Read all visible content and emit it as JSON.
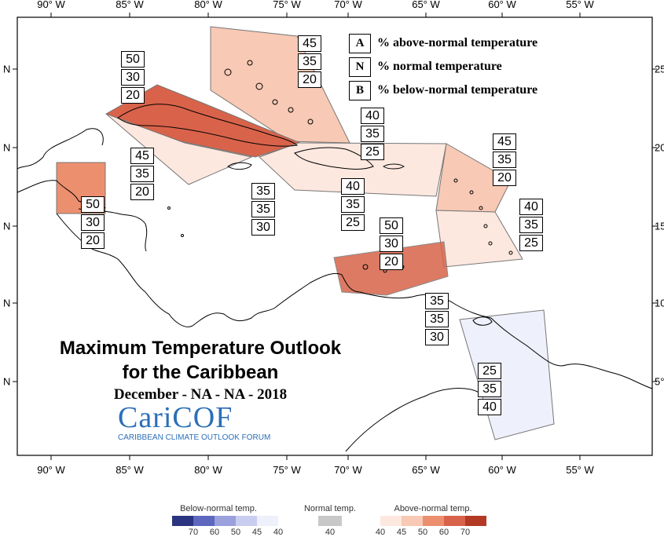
{
  "axes": {
    "lon_ticks": [
      "90° W",
      "85° W",
      "80° W",
      "75° W",
      "70° W",
      "65° W",
      "60° W",
      "55° W"
    ],
    "lat_ticks_left": [
      "N",
      "N",
      "N",
      "N",
      "N"
    ],
    "lat_ticks_right": [
      "25",
      "20",
      "15",
      "10",
      "5°"
    ]
  },
  "legend_key": [
    {
      "letter": "A",
      "text": "% above-normal temperature"
    },
    {
      "letter": "N",
      "text": "% normal temperature"
    },
    {
      "letter": "B",
      "text": "% below-normal temperature"
    }
  ],
  "regions": [
    {
      "name": "bahamas",
      "probs": [
        "45",
        "35",
        "20"
      ]
    },
    {
      "name": "cuba",
      "probs": [
        "50",
        "30",
        "20"
      ]
    },
    {
      "name": "cayman-jamaica-south",
      "probs": [
        "45",
        "35",
        "20"
      ]
    },
    {
      "name": "belize",
      "probs": [
        "50",
        "30",
        "20"
      ]
    },
    {
      "name": "jamaica",
      "probs": [
        "35",
        "35",
        "30"
      ]
    },
    {
      "name": "turks-caicos",
      "probs": [
        "40",
        "35",
        "25"
      ]
    },
    {
      "name": "hispaniola",
      "probs": [
        "40",
        "35",
        "25"
      ]
    },
    {
      "name": "leeward-islands",
      "probs": [
        "45",
        "35",
        "20"
      ]
    },
    {
      "name": "windward-islands",
      "probs": [
        "40",
        "35",
        "25"
      ]
    },
    {
      "name": "abc-islands",
      "probs": [
        "50",
        "30",
        "20"
      ]
    },
    {
      "name": "trinidad-tobago",
      "probs": [
        "35",
        "35",
        "30"
      ]
    },
    {
      "name": "guianas",
      "probs": [
        "25",
        "35",
        "40"
      ]
    }
  ],
  "colors": {
    "above_40": "#fde8df",
    "above_45": "#f8c9b4",
    "above_50": "#ec8f6e",
    "above_60": "#d8634a",
    "above_70": "#b23a25",
    "below_40": "#eef0fb",
    "below_45": "#c9cdef",
    "below_50": "#9aa1dd",
    "below_60": "#5e68be",
    "below_70": "#2b3480",
    "normal_40": "#c8c8c8"
  },
  "title": {
    "line1": "Maximum Temperature Outlook",
    "line2": "for the Caribbean",
    "date": "December - NA - NA - 2018"
  },
  "logo": {
    "text": "CariCOF",
    "subtitle": "CARIBBEAN CLIMATE OUTLOOK FORUM"
  },
  "colorbar": {
    "below_title": "Below-normal temp.",
    "normal_title": "Normal temp.",
    "above_title": "Above-normal temp.",
    "below_labels": [
      "70",
      "60",
      "50",
      "45",
      "40"
    ],
    "normal_labels": [
      "40"
    ],
    "above_labels": [
      "40",
      "45",
      "50",
      "60",
      "70"
    ]
  }
}
